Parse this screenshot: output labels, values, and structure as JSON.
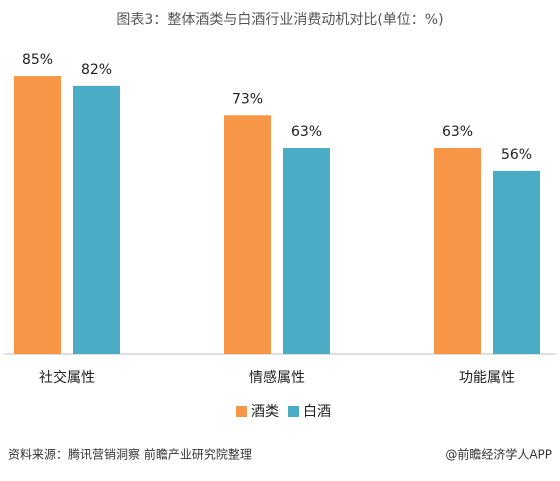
{
  "chart_data": {
    "type": "bar",
    "title": "图表3：整体酒类与白酒行业消费动机对比(单位：%)",
    "categories": [
      "社交属性",
      "情感属性",
      "功能属性"
    ],
    "series": [
      {
        "name": "酒类",
        "color": "#f79646",
        "values": [
          85,
          73,
          63
        ],
        "value_labels": [
          "85%",
          "73%",
          "63%"
        ]
      },
      {
        "name": "白酒",
        "color": "#4bacc6",
        "values": [
          82,
          63,
          56
        ],
        "value_labels": [
          "82%",
          "63%",
          "56%"
        ]
      }
    ],
    "ylim": [
      0,
      100
    ],
    "source": "资料来源：腾讯营销洞察 前瞻产业研究院整理",
    "credit": "@前瞻经济学人APP"
  }
}
